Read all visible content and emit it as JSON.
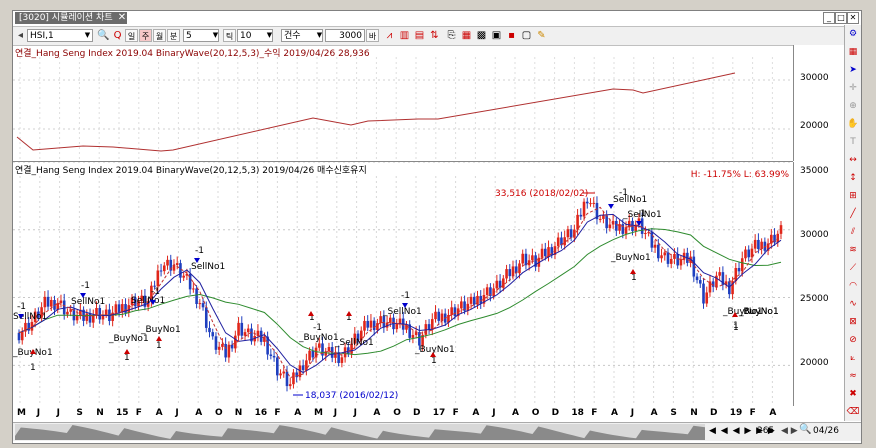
{
  "window": {
    "tab_title": "[3020] 시뮬레이션 차트",
    "close": "✕",
    "minimize": "_",
    "restore": "□",
    "close_win": "✕"
  },
  "toolbar": {
    "symbol": "HSI,1",
    "period_day": "일",
    "period_week": "주",
    "period_month": "월",
    "period_min": "분",
    "interval_value": "5",
    "tick_label": "틱",
    "tick_value": "10",
    "count_label": "건수",
    "count_value": "3000",
    "count_suffix": "바"
  },
  "top_panel": {
    "legend": "연결_Hang Seng Index 2019.04 BinaryWave(20,12,5,3)_수익 2019/04/26 28,936",
    "y_ticks": [
      "30000",
      "20000"
    ]
  },
  "main_panel": {
    "legend": "연결_Hang Seng Index 2019.04 BinaryWave(20,12,5,3)  2019/04/26 매수신호유지",
    "hl_text": "H: -11.75%   L: 63.99%",
    "y_ticks": [
      "35000",
      "30000",
      "25000",
      "20000"
    ],
    "annotations": {
      "high": "33,516 (2018/02/02)",
      "low": "18,037 (2016/02/12)"
    },
    "signals": {
      "sell1": "SellNo1",
      "buy1": "_BuyNo1",
      "buy2": "_BuyNo1",
      "sell2": "SellNo1",
      "sell3": "SellNo1",
      "buy3": "_BuyNo1",
      "buy4": "_BuyNo1",
      "buy5": "_BuyNo1",
      "sell4": "SellNo1",
      "buy6": "_BuyNo1",
      "sell5": "_SellNo1",
      "buy7": "_BuyNo1",
      "buy8": "_BuyNo1",
      "sell6": "_SellNo1",
      "sell7": "SellNo1",
      "buy9": "_BuyNo1",
      "sell8": "_SellNo1",
      "m1": "-1",
      "m2": "-1",
      "m3": "-1",
      "m4": "-1",
      "m5": "-1",
      "m6": "-1",
      "m7": "-1",
      "m8": "-1",
      "p1": "1",
      "p2": "1",
      "p3": "1",
      "p4": "1",
      "p5": "1",
      "p6": "1",
      "p7": "1",
      "p8": "1",
      "p9": "1"
    }
  },
  "x_axis": [
    "M",
    "J",
    "J",
    "S",
    "N",
    "15",
    "F",
    "A",
    "J",
    "A",
    "O",
    "N",
    "16",
    "F",
    "A",
    "M",
    "J",
    "J",
    "A",
    "O",
    "D",
    "17",
    "F",
    "A",
    "J",
    "A",
    "O",
    "D",
    "18",
    "F",
    "A",
    "J",
    "A",
    "S",
    "N",
    "D",
    "19",
    "F",
    "A"
  ],
  "scroll": {
    "count": "265",
    "date": "04/26",
    "zoom_label": "◀ ▶",
    "arrows": "◀ ◀ ◀ ▶ ▶ ▶"
  },
  "colors": {
    "up": "#e0261a",
    "down": "#1f3fbf",
    "ma_blue": "#2020a0",
    "ma_green": "#2e8b2e",
    "ma_red": "#c03030",
    "profit_line": "#b03030",
    "profit_line2": "#3030a0"
  },
  "chart_data": {
    "type": "line",
    "x": [
      "2014-05",
      "2014-06",
      "2014-07",
      "2014-08",
      "2014-09",
      "2014-10",
      "2014-11",
      "2014-12",
      "2015-01",
      "2015-02",
      "2015-03",
      "2015-04",
      "2015-05",
      "2015-06",
      "2015-07",
      "2015-08",
      "2015-09",
      "2015-10",
      "2015-11",
      "2015-12",
      "2016-01",
      "2016-02",
      "2016-03",
      "2016-04",
      "2016-05",
      "2016-06",
      "2016-07",
      "2016-08",
      "2016-09",
      "2016-10",
      "2016-11",
      "2016-12",
      "2017-01",
      "2017-02",
      "2017-03",
      "2017-04",
      "2017-05",
      "2017-06",
      "2017-07",
      "2017-08",
      "2017-09",
      "2017-10",
      "2017-11",
      "2017-12",
      "2018-01",
      "2018-02",
      "2018-03",
      "2018-04",
      "2018-05",
      "2018-06",
      "2018-07",
      "2018-08",
      "2018-09",
      "2018-10",
      "2018-11",
      "2018-12",
      "2019-01",
      "2019-02",
      "2019-03",
      "2019-04"
    ],
    "series": [
      {
        "values": [
          22400,
          23200,
          24500,
          24700,
          23700,
          23500,
          23900,
          23600,
          24300,
          24800,
          24600,
          27500,
          27400,
          26200,
          24700,
          21700,
          20800,
          22800,
          22100,
          21900,
          19700,
          18500,
          20200,
          21300,
          20800,
          20700,
          21900,
          23000,
          23300,
          23000,
          22800,
          21900,
          23300,
          23700,
          24200,
          24500,
          25300,
          25800,
          26800,
          27900,
          27600,
          28500,
          29300,
          29900,
          32500,
          30800,
          30100,
          30300,
          30400,
          28900,
          28000,
          27700,
          27800,
          25000,
          26500,
          25800,
          27900,
          28700,
          29100,
          29900
        ]
      }
    ],
    "ylim": [
      17000,
      35000
    ],
    "annotations": [
      "33,516 (2018/02/02)",
      "18,037 (2016/02/12)"
    ]
  }
}
